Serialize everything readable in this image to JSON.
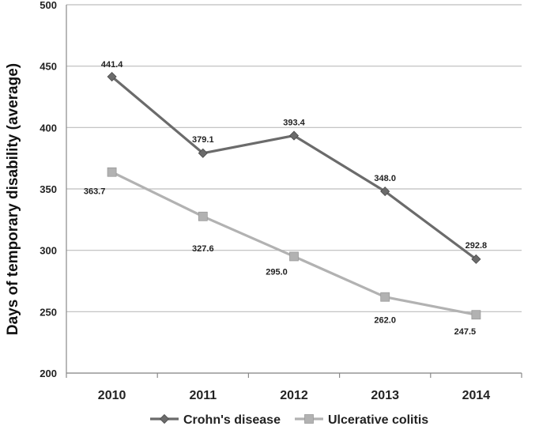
{
  "chart_data": {
    "type": "line",
    "title": "",
    "xlabel": "",
    "ylabel": "Days of temporary disability (average)",
    "ylim": [
      200,
      500
    ],
    "yticks": [
      200,
      250,
      300,
      350,
      400,
      450,
      500
    ],
    "categories": [
      "2010",
      "2011",
      "2012",
      "2013",
      "2014"
    ],
    "grid": "horizontal",
    "legend_position": "bottom",
    "series": [
      {
        "name": "Crohn's disease",
        "values": [
          441.4,
          379.1,
          393.4,
          348.0,
          292.8
        ],
        "labels": [
          "441.4",
          "379.1",
          "393.4",
          "348.0",
          "292.8"
        ],
        "color": "#6b6b6b",
        "marker": "diamond"
      },
      {
        "name": "Ulcerative colitis",
        "values": [
          363.7,
          327.6,
          295.0,
          262.0,
          247.5
        ],
        "labels": [
          "363.7",
          "327.6",
          "295.0",
          "262.0",
          "247.5"
        ],
        "color": "#b2b2b2",
        "marker": "square"
      }
    ]
  }
}
